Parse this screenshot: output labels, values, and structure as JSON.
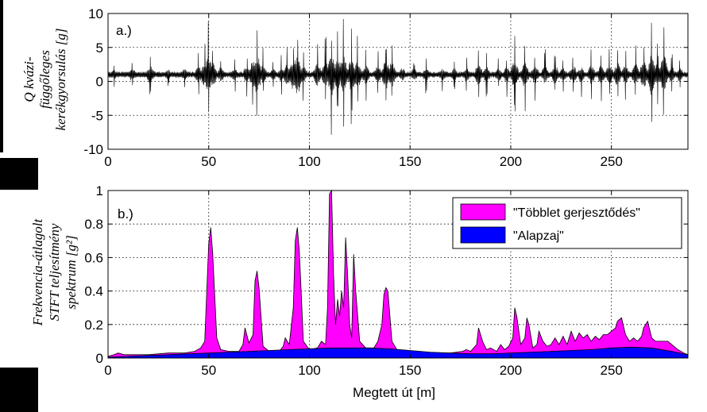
{
  "chart_data": [
    {
      "type": "line",
      "panel_label": "a.)",
      "ylabel": [
        "Q kvázi-",
        "függőleges",
        "kerékgyorsulás [g]"
      ],
      "xlabel": "",
      "xlim": [
        0,
        288
      ],
      "ylim": [
        -10,
        10
      ],
      "xticks": [
        "0",
        "50",
        "100",
        "150",
        "200",
        "250"
      ],
      "yticks": [
        "10",
        "5",
        "0",
        "-5",
        "-10"
      ],
      "grid": true,
      "line_color": "#000000",
      "baseline": 1,
      "bursts": [
        {
          "x": 3,
          "a": 2.0
        },
        {
          "x": 12,
          "a": 2.8
        },
        {
          "x": 21,
          "a": 3.8
        },
        {
          "x": 30,
          "a": 2.2
        },
        {
          "x": 38,
          "a": 2.6
        },
        {
          "x": 45,
          "a": 3.5
        },
        {
          "x": 48,
          "a": 5.0
        },
        {
          "x": 50,
          "a": 8.5
        },
        {
          "x": 52,
          "a": 5.5
        },
        {
          "x": 56,
          "a": 3.0
        },
        {
          "x": 63,
          "a": 2.6
        },
        {
          "x": 69,
          "a": 4.0
        },
        {
          "x": 72,
          "a": 6.0
        },
        {
          "x": 74,
          "a": 8.8
        },
        {
          "x": 77,
          "a": 4.0
        },
        {
          "x": 82,
          "a": 2.4
        },
        {
          "x": 86,
          "a": 3.0
        },
        {
          "x": 89,
          "a": 4.5
        },
        {
          "x": 92,
          "a": 6.5
        },
        {
          "x": 94,
          "a": 8.8
        },
        {
          "x": 97,
          "a": 4.0
        },
        {
          "x": 104,
          "a": 5.0
        },
        {
          "x": 108,
          "a": 6.0
        },
        {
          "x": 111,
          "a": 9.0
        },
        {
          "x": 114,
          "a": 6.5
        },
        {
          "x": 117,
          "a": 8.5
        },
        {
          "x": 121,
          "a": 7.5
        },
        {
          "x": 124,
          "a": 6.0
        },
        {
          "x": 128,
          "a": 4.0
        },
        {
          "x": 134,
          "a": 4.0
        },
        {
          "x": 138,
          "a": 6.5
        },
        {
          "x": 141,
          "a": 5.5
        },
        {
          "x": 146,
          "a": 3.0
        },
        {
          "x": 152,
          "a": 2.5
        },
        {
          "x": 158,
          "a": 2.8
        },
        {
          "x": 166,
          "a": 2.6
        },
        {
          "x": 172,
          "a": 2.6
        },
        {
          "x": 178,
          "a": 3.0
        },
        {
          "x": 184,
          "a": 4.5
        },
        {
          "x": 188,
          "a": 3.5
        },
        {
          "x": 194,
          "a": 2.8
        },
        {
          "x": 198,
          "a": 3.5
        },
        {
          "x": 202,
          "a": 6.0
        },
        {
          "x": 207,
          "a": 5.5
        },
        {
          "x": 212,
          "a": 4.0
        },
        {
          "x": 217,
          "a": 3.8
        },
        {
          "x": 222,
          "a": 4.0
        },
        {
          "x": 226,
          "a": 3.0
        },
        {
          "x": 231,
          "a": 4.0
        },
        {
          "x": 235,
          "a": 3.5
        },
        {
          "x": 240,
          "a": 4.0
        },
        {
          "x": 245,
          "a": 4.0
        },
        {
          "x": 249,
          "a": 4.5
        },
        {
          "x": 253,
          "a": 5.0
        },
        {
          "x": 257,
          "a": 4.0
        },
        {
          "x": 262,
          "a": 4.5
        },
        {
          "x": 266,
          "a": 6.0
        },
        {
          "x": 270,
          "a": 8.8
        },
        {
          "x": 273,
          "a": 5.0
        },
        {
          "x": 276,
          "a": 8.8
        },
        {
          "x": 280,
          "a": 3.5
        },
        {
          "x": 284,
          "a": 3.0
        }
      ]
    },
    {
      "type": "area",
      "panel_label": "b.)",
      "ylabel": [
        "Frekvencia-átlagolt",
        "STFT teljesítmény",
        "spektrum [g²]"
      ],
      "xlabel": "Megtett út [m]",
      "xlim": [
        0,
        288
      ],
      "ylim": [
        0,
        1
      ],
      "xticks": [
        "0",
        "50",
        "100",
        "150",
        "200",
        "250"
      ],
      "yticks": [
        "1",
        "0.8",
        "0.6",
        "0.4",
        "0.2",
        "0"
      ],
      "grid": true,
      "legend_position": "top-right",
      "series": [
        {
          "name": "\"Többlet gerjesztődés\"",
          "color": "#ff00ff",
          "x": [
            0,
            3,
            5,
            8,
            12,
            20,
            30,
            38,
            43,
            46,
            48,
            50,
            51,
            52,
            54,
            56,
            60,
            65,
            67,
            68,
            70,
            72,
            73,
            74,
            75,
            77,
            80,
            85,
            87,
            88,
            90,
            92,
            93,
            94,
            95,
            97,
            100,
            104,
            106,
            108,
            109,
            110,
            111,
            112,
            113,
            114,
            115,
            116,
            117,
            118,
            119,
            120,
            121,
            122,
            123,
            125,
            128,
            132,
            134,
            136,
            137,
            138,
            139,
            141,
            144,
            150,
            160,
            170,
            176,
            178,
            180,
            183,
            184,
            186,
            188,
            190,
            193,
            195,
            197,
            199,
            201,
            202,
            203,
            205,
            207,
            208,
            209,
            211,
            213,
            214,
            216,
            218,
            220,
            222,
            224,
            226,
            228,
            230,
            232,
            234,
            236,
            238,
            240,
            242,
            244,
            246,
            248,
            250,
            252,
            253,
            255,
            257,
            259,
            261,
            263,
            265,
            266,
            268,
            270,
            272,
            274,
            276,
            278,
            280,
            283,
            286,
            288
          ],
          "values": [
            0.01,
            0.02,
            0.03,
            0.02,
            0.02,
            0.02,
            0.03,
            0.03,
            0.04,
            0.06,
            0.1,
            0.68,
            0.78,
            0.62,
            0.12,
            0.05,
            0.04,
            0.04,
            0.08,
            0.18,
            0.09,
            0.14,
            0.46,
            0.52,
            0.42,
            0.07,
            0.04,
            0.04,
            0.07,
            0.12,
            0.08,
            0.3,
            0.7,
            0.78,
            0.64,
            0.1,
            0.05,
            0.06,
            0.1,
            0.08,
            0.3,
            0.98,
            1.0,
            0.5,
            0.2,
            0.35,
            0.25,
            0.4,
            0.3,
            0.72,
            0.5,
            0.2,
            0.12,
            0.62,
            0.4,
            0.1,
            0.06,
            0.06,
            0.1,
            0.2,
            0.38,
            0.42,
            0.4,
            0.1,
            0.04,
            0.04,
            0.03,
            0.03,
            0.04,
            0.05,
            0.04,
            0.08,
            0.18,
            0.1,
            0.05,
            0.06,
            0.04,
            0.08,
            0.05,
            0.07,
            0.12,
            0.3,
            0.25,
            0.08,
            0.12,
            0.24,
            0.2,
            0.06,
            0.08,
            0.16,
            0.1,
            0.07,
            0.08,
            0.12,
            0.08,
            0.13,
            0.08,
            0.16,
            0.1,
            0.15,
            0.12,
            0.14,
            0.1,
            0.13,
            0.11,
            0.14,
            0.14,
            0.16,
            0.18,
            0.22,
            0.24,
            0.14,
            0.1,
            0.12,
            0.1,
            0.13,
            0.18,
            0.22,
            0.12,
            0.1,
            0.1,
            0.1,
            0.1,
            0.08,
            0.05,
            0.03,
            0.02
          ]
        },
        {
          "name": "\"Alapzaj\"",
          "color": "#0000ff",
          "x": [
            0,
            10,
            20,
            30,
            40,
            50,
            60,
            70,
            80,
            90,
            100,
            110,
            120,
            130,
            140,
            150,
            160,
            170,
            180,
            190,
            200,
            210,
            220,
            230,
            240,
            250,
            260,
            270,
            280,
            288
          ],
          "values": [
            0.005,
            0.01,
            0.015,
            0.02,
            0.025,
            0.03,
            0.035,
            0.04,
            0.045,
            0.05,
            0.055,
            0.06,
            0.06,
            0.06,
            0.055,
            0.045,
            0.035,
            0.03,
            0.025,
            0.025,
            0.03,
            0.035,
            0.04,
            0.045,
            0.05,
            0.06,
            0.065,
            0.06,
            0.04,
            0.02
          ]
        }
      ]
    }
  ]
}
